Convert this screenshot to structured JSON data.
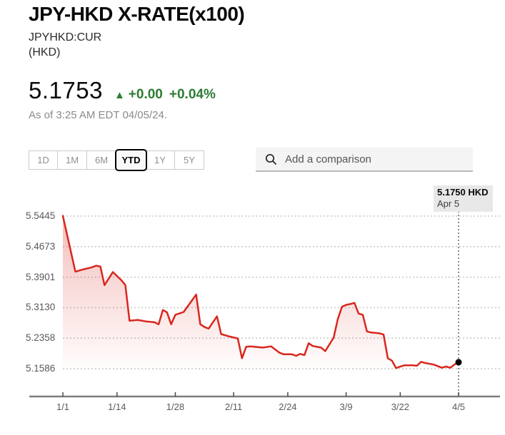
{
  "header": {
    "title": "JPY-HKD X-RATE(x100)",
    "ticker": "JPYHKD:CUR",
    "currency_label": "(HKD)"
  },
  "quote": {
    "price": "5.1753",
    "arrow": "▲",
    "change": "+0.00",
    "change_pct": "+0.04%",
    "as_of": "As of 3:25 AM EDT 04/05/24."
  },
  "controls": {
    "ranges": [
      {
        "label": "1D",
        "active": false
      },
      {
        "label": "1M",
        "active": false
      },
      {
        "label": "6M",
        "active": false
      },
      {
        "label": "YTD",
        "active": true
      },
      {
        "label": "1Y",
        "active": false
      },
      {
        "label": "5Y",
        "active": false
      }
    ],
    "comparison": {
      "placeholder": "Add a comparison",
      "icon": "search-icon"
    }
  },
  "tooltip": {
    "price_label": "5.1750 HKD",
    "date_label": "Apr 5"
  },
  "colors": {
    "line": "#d9271e",
    "grid": "#c9c9c9",
    "axis": "#7d7d7d",
    "tick": "#4a4a4a",
    "crosshair": "#8f8f8f",
    "dot": "#000000",
    "up_green": "#2d7c32"
  },
  "chart_data": {
    "type": "line",
    "title": "JPY-HKD X-RATE(x100) YTD",
    "ylabel": "HKD",
    "grid": "dotted-horizontal",
    "y_ticks": [
      5.5445,
      5.4673,
      5.3901,
      5.313,
      5.2358,
      5.1586
    ],
    "y_tick_labels": [
      "5.5445",
      "5.4673",
      "5.3901",
      "5.3130",
      "5.2358",
      "5.1586"
    ],
    "ylim": [
      5.1586,
      5.5445
    ],
    "x_tick_labels": [
      "1/1",
      "1/14",
      "1/28",
      "2/11",
      "2/24",
      "3/9",
      "3/22",
      "4/5"
    ],
    "x_tick_days": [
      0,
      13,
      27,
      41,
      54,
      68,
      81,
      95
    ],
    "xlim_days": [
      0,
      95
    ],
    "series": [
      {
        "name": "JPYHKD:CUR",
        "points": [
          [
            0,
            5.545
          ],
          [
            3,
            5.404
          ],
          [
            5,
            5.41
          ],
          [
            7,
            5.415
          ],
          [
            8,
            5.419
          ],
          [
            9,
            5.417
          ],
          [
            10,
            5.37
          ],
          [
            12,
            5.403
          ],
          [
            14,
            5.383
          ],
          [
            15,
            5.37
          ],
          [
            16,
            5.28
          ],
          [
            18,
            5.282
          ],
          [
            20,
            5.278
          ],
          [
            22,
            5.276
          ],
          [
            23,
            5.271
          ],
          [
            24,
            5.307
          ],
          [
            25,
            5.301
          ],
          [
            26,
            5.271
          ],
          [
            27,
            5.295
          ],
          [
            29,
            5.302
          ],
          [
            32,
            5.346
          ],
          [
            33,
            5.271
          ],
          [
            34,
            5.264
          ],
          [
            35,
            5.26
          ],
          [
            37,
            5.291
          ],
          [
            38,
            5.246
          ],
          [
            40,
            5.24
          ],
          [
            42,
            5.235
          ],
          [
            43,
            5.185
          ],
          [
            44,
            5.214
          ],
          [
            45,
            5.215
          ],
          [
            48,
            5.212
          ],
          [
            50,
            5.215
          ],
          [
            52,
            5.199
          ],
          [
            53,
            5.195
          ],
          [
            55,
            5.195
          ],
          [
            56,
            5.191
          ],
          [
            57,
            5.196
          ],
          [
            58,
            5.193
          ],
          [
            59,
            5.223
          ],
          [
            60,
            5.216
          ],
          [
            62,
            5.212
          ],
          [
            63,
            5.203
          ],
          [
            65,
            5.237
          ],
          [
            66,
            5.284
          ],
          [
            67,
            5.315
          ],
          [
            68,
            5.32
          ],
          [
            69,
            5.322
          ],
          [
            70,
            5.325
          ],
          [
            71,
            5.298
          ],
          [
            72,
            5.295
          ],
          [
            73,
            5.253
          ],
          [
            74,
            5.25
          ],
          [
            76,
            5.248
          ],
          [
            77,
            5.245
          ],
          [
            78,
            5.185
          ],
          [
            79,
            5.179
          ],
          [
            80,
            5.16
          ],
          [
            81,
            5.164
          ],
          [
            82,
            5.167
          ],
          [
            84,
            5.167
          ],
          [
            85,
            5.166
          ],
          [
            86,
            5.176
          ],
          [
            87,
            5.173
          ],
          [
            88,
            5.171
          ],
          [
            89,
            5.169
          ],
          [
            91,
            5.161
          ],
          [
            92,
            5.164
          ],
          [
            93,
            5.161
          ],
          [
            94,
            5.169
          ],
          [
            95,
            5.175
          ]
        ]
      }
    ],
    "last_point": {
      "day": 95,
      "value": 5.175,
      "label": "5.1750 HKD",
      "date": "Apr 5"
    }
  }
}
